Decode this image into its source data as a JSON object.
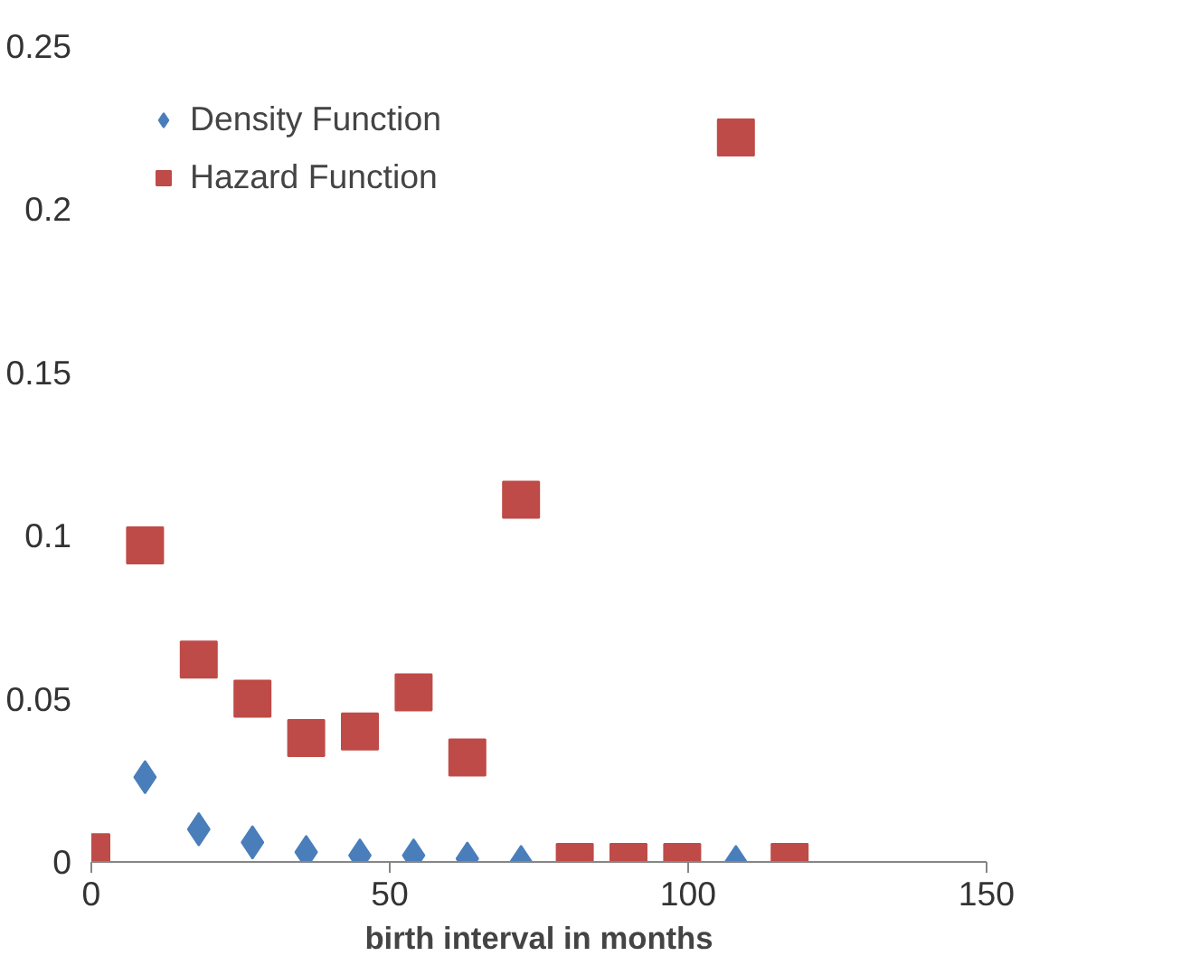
{
  "chart_data": {
    "type": "scatter",
    "xlabel": "birth interval in months",
    "xlim": [
      0,
      150
    ],
    "xticks": [
      0,
      50,
      100,
      150
    ],
    "ylim": [
      0,
      0.25
    ],
    "yticks": [
      0,
      0.05,
      0.1,
      0.15,
      0.2,
      0.25
    ],
    "grid": false,
    "legend": "top left",
    "series": [
      {
        "name": "Density Function",
        "color": "#4a7ebb",
        "marker": "diamond",
        "x": [
          9,
          18,
          27,
          36,
          45,
          54,
          63,
          72,
          108
        ],
        "values": [
          0.026,
          0.01,
          0.006,
          0.003,
          0.002,
          0.002,
          0.001,
          0.0,
          0.0
        ]
      },
      {
        "name": "Hazard Function",
        "color": "#be4b48",
        "marker": "square",
        "x": [
          0,
          9,
          18,
          27,
          36,
          45,
          54,
          63,
          72,
          81,
          90,
          99,
          108,
          117
        ],
        "values": [
          0.003,
          0.097,
          0.062,
          0.05,
          0.038,
          0.04,
          0.052,
          0.032,
          0.111,
          0.0,
          0.0,
          0.0,
          0.222,
          0.0
        ]
      }
    ]
  }
}
